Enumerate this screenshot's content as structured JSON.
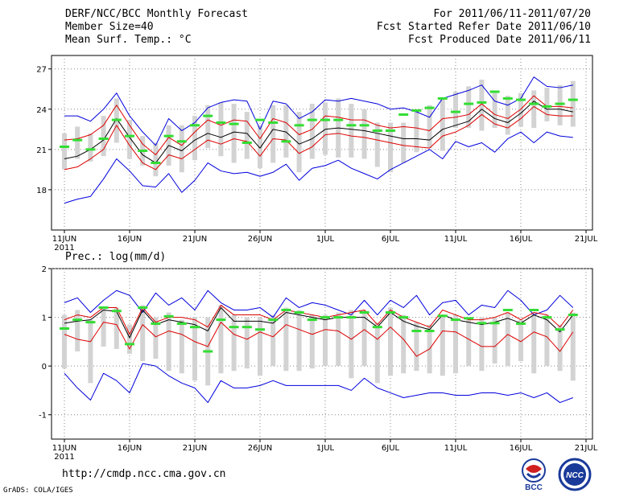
{
  "header": {
    "title": "DERF/NCC/BCC Monthly Forecast",
    "member_size": "Member Size=40",
    "variable": "Mean Surf. Temp.: °C",
    "period": "For 2011/06/11-2011/07/20",
    "refer_date": "Fcst Started Refer Date 2011/06/10",
    "produced_date": "Fcst Produced Date 2011/06/11"
  },
  "footer": {
    "url": "http://cmdp.ncc.cma.gov.cn",
    "grads": "GrADS: COLA/IGES",
    "logo_bcc": "BCC",
    "logo_ncc": "NCC"
  },
  "colors": {
    "envelope": "#0000dd",
    "spread": "#dd0000",
    "mean": "#000000",
    "bar": "#d3d3d3",
    "dash": "#33dd33",
    "grid": "#888888"
  },
  "x_axis": {
    "labels": [
      "11JUN",
      "16JUN",
      "21JUN",
      "26JUN",
      "1JUL",
      "6JUL",
      "11JUL",
      "16JUL",
      "21JUL"
    ],
    "year_label": "2011"
  },
  "chart_data": [
    {
      "type": "line",
      "title": "Mean Surf. Temp.: °C",
      "ylabel": "°C",
      "ylim": [
        15,
        28
      ],
      "yticks": [
        18,
        21,
        24,
        27
      ],
      "x": [
        1,
        2,
        3,
        4,
        5,
        6,
        7,
        8,
        9,
        10,
        11,
        12,
        13,
        14,
        15,
        16,
        17,
        18,
        19,
        20,
        21,
        22,
        23,
        24,
        25,
        26,
        27,
        28,
        29,
        30,
        31,
        32,
        33,
        34,
        35,
        36,
        37,
        38,
        39,
        40
      ],
      "series": [
        {
          "name": "max",
          "values": [
            23.5,
            23.5,
            23.1,
            24.0,
            25.2,
            23.5,
            22.3,
            21.3,
            23.3,
            22.4,
            23.0,
            24.1,
            24.5,
            24.7,
            24.6,
            22.5,
            24.6,
            24.4,
            23.3,
            23.8,
            24.7,
            24.6,
            24.8,
            24.6,
            24.4,
            24.0,
            24.1,
            23.8,
            23.4,
            24.8,
            25.1,
            25.4,
            25.8,
            24.6,
            24.3,
            24.8,
            26.4,
            25.7,
            25.6,
            25.8
          ]
        },
        {
          "name": "upper",
          "values": [
            21.7,
            21.8,
            22.1,
            22.8,
            24.3,
            22.8,
            21.4,
            20.6,
            21.9,
            21.3,
            22.3,
            23.2,
            22.8,
            23.2,
            23.1,
            21.8,
            23.3,
            23.0,
            22.1,
            22.5,
            23.5,
            23.4,
            23.2,
            23.2,
            22.8,
            22.6,
            22.7,
            22.6,
            22.4,
            23.3,
            23.4,
            23.6,
            24.4,
            23.6,
            23.3,
            24.0,
            25.0,
            24.2,
            24.2,
            24.1
          ]
        },
        {
          "name": "mean",
          "values": [
            20.3,
            20.5,
            21.0,
            21.7,
            23.3,
            21.9,
            20.6,
            20.0,
            21.3,
            20.9,
            21.7,
            22.2,
            21.9,
            22.3,
            22.2,
            21.1,
            22.5,
            22.3,
            21.4,
            21.8,
            22.5,
            22.6,
            22.5,
            22.4,
            22.2,
            22.0,
            21.8,
            21.8,
            21.7,
            22.5,
            22.8,
            23.1,
            24.0,
            23.3,
            23.0,
            23.7,
            24.6,
            24.0,
            24.0,
            23.8
          ]
        },
        {
          "name": "lower",
          "values": [
            19.5,
            19.7,
            20.3,
            21.0,
            22.8,
            21.3,
            20.0,
            19.5,
            20.6,
            20.3,
            21.0,
            21.7,
            21.4,
            21.8,
            21.6,
            20.5,
            21.8,
            21.7,
            20.7,
            21.2,
            22.1,
            22.2,
            22.0,
            21.9,
            21.7,
            21.5,
            21.3,
            21.2,
            21.1,
            22.0,
            22.3,
            22.8,
            23.6,
            22.9,
            22.6,
            23.3,
            24.2,
            23.6,
            23.5,
            23.5
          ]
        },
        {
          "name": "min",
          "values": [
            17.0,
            17.3,
            17.5,
            18.8,
            20.3,
            19.4,
            18.3,
            18.2,
            19.2,
            17.8,
            18.7,
            20.0,
            19.4,
            19.2,
            19.3,
            19.0,
            19.3,
            19.9,
            18.7,
            19.6,
            19.8,
            20.2,
            19.6,
            19.2,
            18.8,
            19.5,
            20.0,
            20.5,
            21.0,
            20.3,
            21.6,
            21.2,
            21.5,
            20.8,
            21.8,
            22.3,
            21.5,
            22.3,
            22.0,
            21.9
          ]
        }
      ],
      "box_low": [
        19.5,
        20.3,
        20.1,
        20.5,
        21.5,
        20.3,
        19.8,
        19.0,
        19.8,
        19.3,
        20.2,
        21.1,
        20.5,
        20.0,
        20.3,
        19.6,
        20.0,
        20.4,
        19.3,
        20.3,
        20.6,
        20.4,
        20.4,
        20.3,
        19.7,
        19.3,
        20.0,
        20.8,
        21.1,
        20.9,
        22.6,
        22.6,
        22.4,
        22.6,
        22.1,
        22.7,
        22.6,
        23.1,
        22.8,
        22.7
      ],
      "box_high": [
        22.2,
        22.7,
        22.2,
        23.5,
        24.8,
        23.2,
        22.0,
        21.5,
        22.8,
        22.8,
        23.5,
        24.3,
        24.5,
        24.4,
        23.8,
        22.8,
        24.3,
        24.3,
        23.8,
        24.4,
        24.5,
        24.8,
        24.4,
        24.0,
        23.0,
        23.0,
        23.0,
        24.0,
        24.3,
        24.8,
        25.3,
        25.7,
        26.2,
        25.2,
        25.0,
        25.2,
        25.4,
        25.6,
        25.8,
        26.1
      ],
      "green": [
        21.2,
        21.7,
        21.0,
        21.8,
        23.2,
        22.0,
        20.9,
        20.0,
        22.0,
        21.6,
        22.8,
        23.5,
        23.0,
        22.9,
        21.5,
        23.2,
        23.0,
        21.6,
        22.8,
        23.2,
        23.2,
        23.2,
        22.8,
        22.8,
        22.4,
        22.4,
        23.6,
        23.9,
        24.1,
        24.8,
        23.8,
        24.4,
        24.5,
        25.3,
        24.8,
        24.7,
        24.4,
        24.2,
        24.4,
        24.7
      ]
    },
    {
      "type": "line",
      "title": "Prec.: log(mm/d)",
      "ylabel": "log(mm/d)",
      "ylim": [
        -1.5,
        2
      ],
      "yticks": [
        -1,
        0,
        1,
        2
      ],
      "x": [
        1,
        2,
        3,
        4,
        5,
        6,
        7,
        8,
        9,
        10,
        11,
        12,
        13,
        14,
        15,
        16,
        17,
        18,
        19,
        20,
        21,
        22,
        23,
        24,
        25,
        26,
        27,
        28,
        29,
        30,
        31,
        32,
        33,
        34,
        35,
        36,
        37,
        38,
        39,
        40
      ],
      "series": [
        {
          "name": "max",
          "values": [
            1.3,
            1.4,
            1.1,
            1.35,
            1.55,
            1.45,
            1.1,
            1.5,
            1.25,
            1.4,
            1.15,
            1.55,
            1.3,
            1.15,
            1.15,
            1.2,
            1.0,
            1.4,
            1.2,
            1.3,
            1.25,
            1.15,
            1.05,
            1.35,
            1.05,
            1.35,
            1.2,
            1.45,
            1.05,
            1.3,
            1.35,
            1.05,
            1.25,
            1.2,
            1.55,
            1.35,
            1.05,
            1.15,
            1.45,
            1.2
          ]
        },
        {
          "name": "upper",
          "values": [
            0.95,
            1.05,
            1.0,
            1.2,
            1.2,
            0.65,
            1.2,
            0.9,
            1.0,
            1.0,
            0.95,
            0.8,
            1.25,
            1.05,
            1.05,
            1.05,
            0.95,
            1.15,
            1.1,
            1.05,
            1.0,
            1.05,
            1.1,
            1.15,
            0.85,
            1.15,
            1.0,
            0.9,
            0.8,
            1.15,
            1.05,
            0.95,
            0.95,
            1.0,
            1.1,
            0.95,
            1.1,
            1.05,
            0.8,
            1.15
          ]
        },
        {
          "name": "mean",
          "values": [
            0.88,
            0.92,
            0.95,
            1.15,
            1.12,
            0.58,
            1.15,
            0.85,
            0.95,
            0.9,
            0.85,
            0.72,
            1.2,
            0.92,
            0.92,
            0.92,
            0.88,
            1.1,
            1.05,
            1.0,
            0.95,
            1.0,
            1.0,
            1.0,
            0.8,
            1.1,
            0.92,
            0.82,
            0.75,
            1.05,
            0.95,
            0.9,
            0.85,
            0.9,
            0.98,
            0.88,
            1.05,
            0.95,
            0.7,
            1.05
          ]
        },
        {
          "name": "lower",
          "values": [
            0.65,
            0.55,
            0.5,
            0.9,
            0.85,
            0.35,
            0.85,
            0.6,
            0.72,
            0.65,
            0.5,
            0.4,
            0.9,
            0.65,
            0.55,
            0.7,
            0.6,
            0.85,
            0.75,
            0.65,
            0.75,
            0.72,
            0.55,
            0.75,
            0.55,
            0.8,
            0.55,
            0.2,
            0.35,
            0.72,
            0.7,
            0.55,
            0.4,
            0.4,
            0.65,
            0.5,
            0.7,
            0.6,
            0.3,
            0.7
          ]
        },
        {
          "name": "min",
          "values": [
            -0.15,
            -0.45,
            -0.7,
            -0.15,
            -0.3,
            -0.55,
            0.05,
            0.0,
            -0.2,
            -0.35,
            -0.45,
            -0.75,
            -0.3,
            -0.45,
            -0.45,
            -0.4,
            -0.3,
            -0.4,
            -0.4,
            -0.4,
            -0.4,
            -0.4,
            -0.5,
            -0.25,
            -0.45,
            -0.55,
            -0.65,
            -0.6,
            -0.55,
            -0.55,
            -0.6,
            -0.6,
            -0.55,
            -0.55,
            -0.6,
            -0.55,
            -0.65,
            -0.55,
            -0.75,
            -0.65
          ]
        }
      ],
      "box_low": [
        -0.05,
        0.3,
        -0.35,
        0.4,
        0.35,
        0.25,
        0.1,
        0.15,
        -0.1,
        -0.15,
        -0.3,
        -0.4,
        -0.15,
        -0.1,
        -0.05,
        -0.2,
        0.0,
        -0.1,
        -0.1,
        -0.05,
        0.0,
        0.0,
        -0.25,
        0.0,
        -0.35,
        -0.2,
        -0.15,
        -0.1,
        -0.15,
        -0.2,
        -0.15,
        0.0,
        -0.1,
        0.05,
        0.0,
        0.1,
        -0.15,
        0.0,
        -0.1,
        -0.3
      ],
      "box_high": [
        1.05,
        1.15,
        0.95,
        1.2,
        1.2,
        0.85,
        1.25,
        1.0,
        1.1,
        0.95,
        1.0,
        1.0,
        1.25,
        1.05,
        1.0,
        1.0,
        1.05,
        1.2,
        1.15,
        1.05,
        1.05,
        1.1,
        1.15,
        1.15,
        0.9,
        1.2,
        1.05,
        0.9,
        0.85,
        1.05,
        1.05,
        1.0,
        1.0,
        1.0,
        1.1,
        0.95,
        1.1,
        1.05,
        0.85,
        1.1
      ],
      "green": [
        0.77,
        0.95,
        0.9,
        1.2,
        1.13,
        0.45,
        1.2,
        0.87,
        1.02,
        0.87,
        0.8,
        0.3,
        0.95,
        0.8,
        0.8,
        0.75,
        0.95,
        1.15,
        1.1,
        0.95,
        1.0,
        1.0,
        1.0,
        1.1,
        0.8,
        1.1,
        1.0,
        0.72,
        0.72,
        1.03,
        0.95,
        0.98,
        0.88,
        0.88,
        1.15,
        0.87,
        1.15,
        1.0,
        0.75,
        1.05
      ]
    }
  ]
}
